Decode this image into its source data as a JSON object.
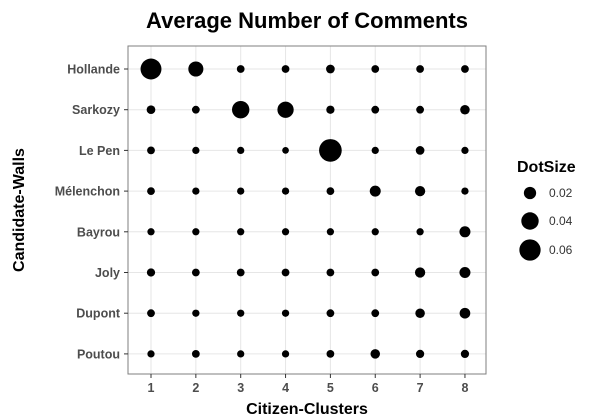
{
  "chart_data": {
    "type": "scatter",
    "title": "Average Number of Comments",
    "xlabel": "Citizen-Clusters",
    "ylabel": "Candidate-Walls",
    "x_categories": [
      "1",
      "2",
      "3",
      "4",
      "5",
      "6",
      "7",
      "8"
    ],
    "y_categories": [
      "Hollande",
      "Sarkozy",
      "Le Pen",
      "Mélenchon",
      "Bayrou",
      "Joly",
      "Dupont",
      "Poutou"
    ],
    "size_range": [
      0,
      0.07
    ],
    "grid": true,
    "legend": {
      "title": "DotSize",
      "placement": "right",
      "entries": [
        {
          "label": "0.02",
          "value": 0.02
        },
        {
          "label": "0.04",
          "value": 0.04
        },
        {
          "label": "0.06",
          "value": 0.06
        }
      ]
    },
    "series": [
      {
        "y": "Hollande",
        "values": [
          0.058,
          0.03,
          0.008,
          0.008,
          0.01,
          0.008,
          0.008,
          0.008
        ]
      },
      {
        "y": "Sarkozy",
        "values": [
          0.01,
          0.008,
          0.04,
          0.035,
          0.009,
          0.008,
          0.008,
          0.012
        ]
      },
      {
        "y": "Le Pen",
        "values": [
          0.008,
          0.007,
          0.007,
          0.006,
          0.068,
          0.007,
          0.01,
          0.007
        ]
      },
      {
        "y": "Mélenchon",
        "values": [
          0.008,
          0.007,
          0.007,
          0.007,
          0.008,
          0.016,
          0.014,
          0.007
        ]
      },
      {
        "y": "Bayrou",
        "values": [
          0.007,
          0.007,
          0.007,
          0.007,
          0.007,
          0.007,
          0.007,
          0.016
        ]
      },
      {
        "y": "Joly",
        "values": [
          0.009,
          0.008,
          0.008,
          0.008,
          0.008,
          0.008,
          0.014,
          0.016
        ]
      },
      {
        "y": "Dupont",
        "values": [
          0.008,
          0.007,
          0.007,
          0.007,
          0.008,
          0.008,
          0.012,
          0.015
        ]
      },
      {
        "y": "Poutou",
        "values": [
          0.007,
          0.008,
          0.007,
          0.007,
          0.008,
          0.012,
          0.009,
          0.009
        ]
      }
    ]
  }
}
